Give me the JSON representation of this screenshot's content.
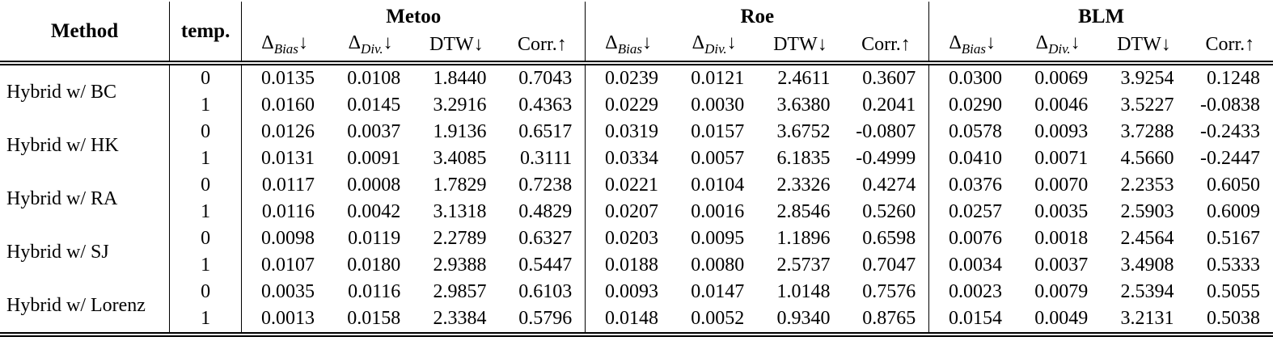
{
  "table": {
    "method_header": "Method",
    "temp_header": "temp.",
    "groups": [
      "Metoo",
      "Roe",
      "BLM"
    ],
    "metrics": [
      {
        "base": "Δ",
        "sub": "Bias",
        "dir": "↓"
      },
      {
        "base": "Δ",
        "sub": "Div.",
        "dir": "↓"
      },
      {
        "base": "DTW",
        "sub": "",
        "dir": "↓"
      },
      {
        "base": "Corr.",
        "sub": "",
        "dir": "↑"
      }
    ],
    "methods": [
      {
        "name": "Hybrid w/ BC",
        "rows": [
          {
            "temp": "0",
            "values": [
              "0.0135",
              "0.0108",
              "1.8440",
              "0.7043",
              "0.0239",
              "0.0121",
              "2.4611",
              "0.3607",
              "0.0300",
              "0.0069",
              "3.9254",
              "0.1248"
            ]
          },
          {
            "temp": "1",
            "values": [
              "0.0160",
              "0.0145",
              "3.2916",
              "0.4363",
              "0.0229",
              "0.0030",
              "3.6380",
              "0.2041",
              "0.0290",
              "0.0046",
              "3.5227",
              "-0.0838"
            ]
          }
        ]
      },
      {
        "name": "Hybrid w/ HK",
        "rows": [
          {
            "temp": "0",
            "values": [
              "0.0126",
              "0.0037",
              "1.9136",
              "0.6517",
              "0.0319",
              "0.0157",
              "3.6752",
              "-0.0807",
              "0.0578",
              "0.0093",
              "3.7288",
              "-0.2433"
            ]
          },
          {
            "temp": "1",
            "values": [
              "0.0131",
              "0.0091",
              "3.4085",
              "0.3111",
              "0.0334",
              "0.0057",
              "6.1835",
              "-0.4999",
              "0.0410",
              "0.0071",
              "4.5660",
              "-0.2447"
            ]
          }
        ]
      },
      {
        "name": "Hybrid w/ RA",
        "rows": [
          {
            "temp": "0",
            "values": [
              "0.0117",
              "0.0008",
              "1.7829",
              "0.7238",
              "0.0221",
              "0.0104",
              "2.3326",
              "0.4274",
              "0.0376",
              "0.0070",
              "2.2353",
              "0.6050"
            ]
          },
          {
            "temp": "1",
            "values": [
              "0.0116",
              "0.0042",
              "3.1318",
              "0.4829",
              "0.0207",
              "0.0016",
              "2.8546",
              "0.5260",
              "0.0257",
              "0.0035",
              "2.5903",
              "0.6009"
            ]
          }
        ]
      },
      {
        "name": "Hybrid w/ SJ",
        "rows": [
          {
            "temp": "0",
            "values": [
              "0.0098",
              "0.0119",
              "2.2789",
              "0.6327",
              "0.0203",
              "0.0095",
              "1.1896",
              "0.6598",
              "0.0076",
              "0.0018",
              "2.4564",
              "0.5167"
            ]
          },
          {
            "temp": "1",
            "values": [
              "0.0107",
              "0.0180",
              "2.9388",
              "0.5447",
              "0.0188",
              "0.0080",
              "2.5737",
              "0.7047",
              "0.0034",
              "0.0037",
              "3.4908",
              "0.5333"
            ]
          }
        ]
      },
      {
        "name": "Hybrid w/ Lorenz",
        "rows": [
          {
            "temp": "0",
            "values": [
              "0.0035",
              "0.0116",
              "2.9857",
              "0.6103",
              "0.0093",
              "0.0147",
              "1.0148",
              "0.7576",
              "0.0023",
              "0.0079",
              "2.5394",
              "0.5055"
            ]
          },
          {
            "temp": "1",
            "values": [
              "0.0013",
              "0.0158",
              "2.3384",
              "0.5796",
              "0.0148",
              "0.0052",
              "0.9340",
              "0.8765",
              "0.0154",
              "0.0049",
              "3.2131",
              "0.5038"
            ]
          }
        ]
      }
    ]
  }
}
